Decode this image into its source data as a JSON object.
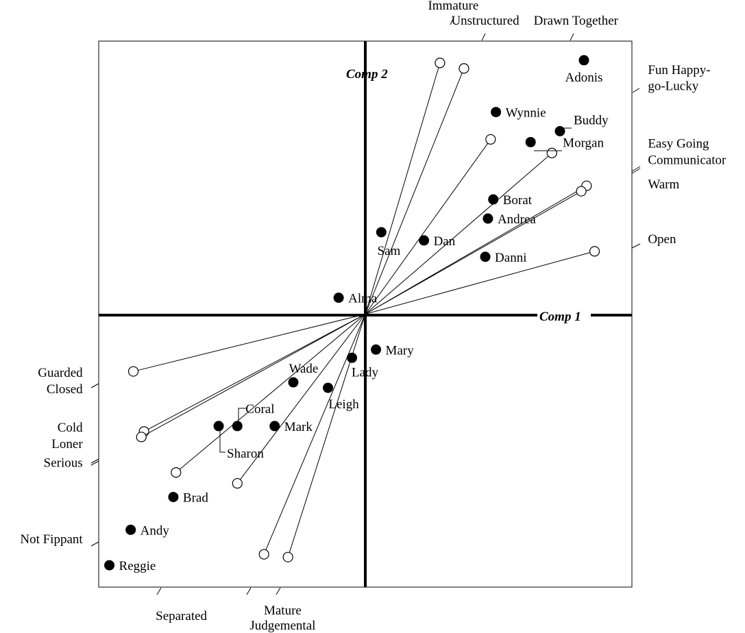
{
  "chart_data": {
    "type": "scatter",
    "subtype": "biplot",
    "title": "",
    "xlabel": "Comp 1",
    "ylabel": "Comp 2",
    "xlim": [
      -1,
      1
    ],
    "ylim": [
      -1,
      1
    ],
    "grid": false,
    "legend": "none",
    "colors": {
      "points": "#000000",
      "vectors": "#000000",
      "background": "#ffffff"
    },
    "points": [
      {
        "name": "Adonis",
        "x": 0.82,
        "y": 0.93
      },
      {
        "name": "Wynnie",
        "x": 0.49,
        "y": 0.74
      },
      {
        "name": "Buddy",
        "x": 0.73,
        "y": 0.67
      },
      {
        "name": "Morgan",
        "x": 0.62,
        "y": 0.63
      },
      {
        "name": "Borat",
        "x": 0.48,
        "y": 0.42
      },
      {
        "name": "Andrea",
        "x": 0.46,
        "y": 0.35
      },
      {
        "name": "Sam",
        "x": 0.06,
        "y": 0.3
      },
      {
        "name": "Dan",
        "x": 0.22,
        "y": 0.27
      },
      {
        "name": "Danni",
        "x": 0.45,
        "y": 0.21
      },
      {
        "name": "Alma",
        "x": -0.1,
        "y": 0.06
      },
      {
        "name": "Mary",
        "x": 0.04,
        "y": -0.13
      },
      {
        "name": "Lady",
        "x": -0.05,
        "y": -0.16
      },
      {
        "name": "Wade",
        "x": -0.27,
        "y": -0.25
      },
      {
        "name": "Leigh",
        "x": -0.14,
        "y": -0.27
      },
      {
        "name": "Coral",
        "x": -0.48,
        "y": -0.41
      },
      {
        "name": "Sharon",
        "x": -0.55,
        "y": -0.41
      },
      {
        "name": "Mark",
        "x": -0.34,
        "y": -0.41
      },
      {
        "name": "Brad",
        "x": -0.72,
        "y": -0.67
      },
      {
        "name": "Andy",
        "x": -0.88,
        "y": -0.79
      },
      {
        "name": "Reggie",
        "x": -0.96,
        "y": -0.92
      }
    ],
    "vector_tips": [
      {
        "x": 0.28,
        "y": 0.92
      },
      {
        "x": 0.37,
        "y": 0.9
      },
      {
        "x": 0.47,
        "y": 0.64
      },
      {
        "x": 0.7,
        "y": 0.59
      },
      {
        "x": 0.83,
        "y": 0.47
      },
      {
        "x": 0.81,
        "y": 0.45
      },
      {
        "x": 0.86,
        "y": 0.23
      },
      {
        "x": -0.87,
        "y": -0.21
      },
      {
        "x": -0.83,
        "y": -0.43
      },
      {
        "x": -0.84,
        "y": -0.45
      },
      {
        "x": -0.71,
        "y": -0.58
      },
      {
        "x": -0.48,
        "y": -0.62
      },
      {
        "x": -0.38,
        "y": -0.88
      },
      {
        "x": -0.29,
        "y": -0.89
      }
    ],
    "annotations": [
      {
        "text": "Immature",
        "x": 0.33,
        "y": 1.115,
        "anchor": "middle"
      },
      {
        "text": "Unstructured",
        "x": 0.45,
        "y": 1.06,
        "anchor": "middle"
      },
      {
        "text": "Drawn Together",
        "x": 0.79,
        "y": 1.06,
        "anchor": "middle"
      },
      {
        "text": "Fun Happy-",
        "x": 1.06,
        "y": 0.88,
        "anchor": "start"
      },
      {
        "text": "go-Lucky",
        "x": 1.06,
        "y": 0.82,
        "anchor": "start"
      },
      {
        "text": "Easy Going",
        "x": 1.06,
        "y": 0.61,
        "anchor": "start"
      },
      {
        "text": "Communicator",
        "x": 1.06,
        "y": 0.55,
        "anchor": "start"
      },
      {
        "text": "Warm",
        "x": 1.06,
        "y": 0.46,
        "anchor": "start"
      },
      {
        "text": "Open",
        "x": 1.06,
        "y": 0.26,
        "anchor": "start"
      },
      {
        "text": "Guarded",
        "x": -1.06,
        "y": -0.23,
        "anchor": "end"
      },
      {
        "text": "Closed",
        "x": -1.06,
        "y": -0.29,
        "anchor": "end"
      },
      {
        "text": "Cold",
        "x": -1.06,
        "y": -0.43,
        "anchor": "end"
      },
      {
        "text": "Loner",
        "x": -1.06,
        "y": -0.49,
        "anchor": "end"
      },
      {
        "text": "Serious",
        "x": -1.06,
        "y": -0.56,
        "anchor": "end"
      },
      {
        "text": "Not Fippant",
        "x": -1.06,
        "y": -0.84,
        "anchor": "end"
      },
      {
        "text": "Separated",
        "x": -0.69,
        "y": -1.12,
        "anchor": "middle"
      },
      {
        "text": "Mature",
        "x": -0.31,
        "y": -1.1,
        "anchor": "middle"
      },
      {
        "text": "Judgemental",
        "x": -0.31,
        "y": -1.155,
        "anchor": "middle"
      }
    ]
  }
}
